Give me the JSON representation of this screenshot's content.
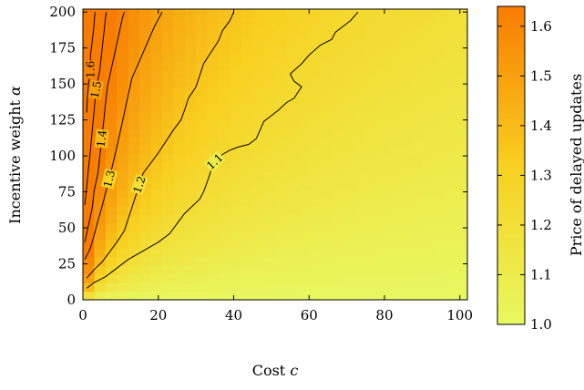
{
  "chart_data": {
    "type": "heatmap",
    "title": "",
    "xlabel": "Cost",
    "xlabel_var": "c",
    "ylabel": "Incentive weight",
    "ylabel_var": "α",
    "xlim": [
      0,
      102
    ],
    "ylim": [
      0,
      202
    ],
    "xticks": [
      "0",
      "20",
      "40",
      "60",
      "80",
      "100"
    ],
    "yticks": [
      "0",
      "25",
      "50",
      "75",
      "100",
      "125",
      "150",
      "175",
      "200"
    ],
    "colorbar": {
      "label": "Price of delayed updates",
      "range": [
        1.0,
        1.64
      ],
      "ticks": [
        "1.0",
        "1.1",
        "1.2",
        "1.3",
        "1.4",
        "1.5",
        "1.6"
      ],
      "color_low": "#e8f860",
      "color_mid": "#f8d020",
      "color_high": "#f87c00"
    },
    "contours": [
      {
        "level": 1.1,
        "label": "1.1",
        "points": [
          [
            1,
            8
          ],
          [
            3,
            12
          ],
          [
            6,
            16
          ],
          [
            9,
            22
          ],
          [
            12,
            28
          ],
          [
            16,
            34
          ],
          [
            20,
            40
          ],
          [
            23,
            46
          ],
          [
            25,
            53
          ],
          [
            27,
            60
          ],
          [
            29,
            65
          ],
          [
            31,
            70
          ],
          [
            32,
            75
          ],
          [
            33,
            82
          ],
          [
            34,
            90
          ],
          [
            35,
            96
          ],
          [
            37,
            101
          ],
          [
            39,
            104
          ],
          [
            41,
            106
          ],
          [
            44,
            108
          ],
          [
            46,
            112
          ],
          [
            47,
            118
          ],
          [
            48,
            124
          ],
          [
            50,
            128
          ],
          [
            52,
            132
          ],
          [
            54,
            137
          ],
          [
            56,
            140
          ],
          [
            58,
            148
          ],
          [
            56,
            152
          ],
          [
            55,
            157
          ],
          [
            58,
            164
          ],
          [
            60,
            170
          ],
          [
            63,
            177
          ],
          [
            66,
            181
          ],
          [
            67,
            186
          ],
          [
            69,
            190
          ],
          [
            71,
            194
          ],
          [
            73,
            200
          ]
        ]
      },
      {
        "level": 1.2,
        "label": "1.2",
        "points": [
          [
            1,
            15
          ],
          [
            3,
            21
          ],
          [
            5,
            26
          ],
          [
            7,
            33
          ],
          [
            9,
            40
          ],
          [
            11,
            48
          ],
          [
            12,
            56
          ],
          [
            13,
            64
          ],
          [
            14,
            72
          ],
          [
            15,
            80
          ],
          [
            16,
            88
          ],
          [
            18,
            95
          ],
          [
            20,
            102
          ],
          [
            22,
            110
          ],
          [
            24,
            118
          ],
          [
            26,
            125
          ],
          [
            27,
            132
          ],
          [
            28,
            140
          ],
          [
            30,
            148
          ],
          [
            31,
            156
          ],
          [
            32,
            164
          ],
          [
            34,
            172
          ],
          [
            36,
            180
          ],
          [
            37,
            187
          ],
          [
            39,
            194
          ],
          [
            40,
            200
          ]
        ]
      },
      {
        "level": 1.3,
        "label": "1.3",
        "points": [
          [
            0.5,
            28
          ],
          [
            2,
            36
          ],
          [
            3,
            45
          ],
          [
            4,
            55
          ],
          [
            5,
            64
          ],
          [
            6,
            74
          ],
          [
            7,
            84
          ],
          [
            8,
            95
          ],
          [
            9,
            106
          ],
          [
            10,
            118
          ],
          [
            11,
            130
          ],
          [
            12,
            142
          ],
          [
            13,
            154
          ],
          [
            15,
            166
          ],
          [
            17,
            178
          ],
          [
            19,
            190
          ],
          [
            21,
            200
          ]
        ]
      },
      {
        "level": 1.4,
        "label": "1.4",
        "points": [
          [
            0.5,
            40
          ],
          [
            1.5,
            52
          ],
          [
            2.5,
            64
          ],
          [
            3,
            76
          ],
          [
            4,
            88
          ],
          [
            4.5,
            100
          ],
          [
            5,
            112
          ],
          [
            5.5,
            124
          ],
          [
            6,
            136
          ],
          [
            6.5,
            148
          ],
          [
            7.5,
            160
          ],
          [
            8.5,
            172
          ],
          [
            9.5,
            184
          ],
          [
            10.5,
            196
          ],
          [
            11,
            200
          ]
        ]
      },
      {
        "level": 1.5,
        "label": "1.5",
        "points": [
          [
            0.5,
            66
          ],
          [
            1,
            78
          ],
          [
            1.5,
            92
          ],
          [
            2,
            104
          ],
          [
            2.5,
            118
          ],
          [
            3,
            132
          ],
          [
            3.5,
            146
          ],
          [
            4.5,
            160
          ],
          [
            5,
            172
          ],
          [
            5.5,
            184
          ],
          [
            6,
            196
          ],
          [
            6.2,
            200
          ]
        ]
      },
      {
        "level": 1.6,
        "label": "1.6",
        "points": [
          [
            1,
            130
          ],
          [
            1.2,
            142
          ],
          [
            1.5,
            150
          ],
          [
            2,
            160
          ],
          [
            2,
            170
          ],
          [
            2.5,
            180
          ],
          [
            3,
            192
          ],
          [
            3.2,
            200
          ]
        ]
      }
    ]
  }
}
